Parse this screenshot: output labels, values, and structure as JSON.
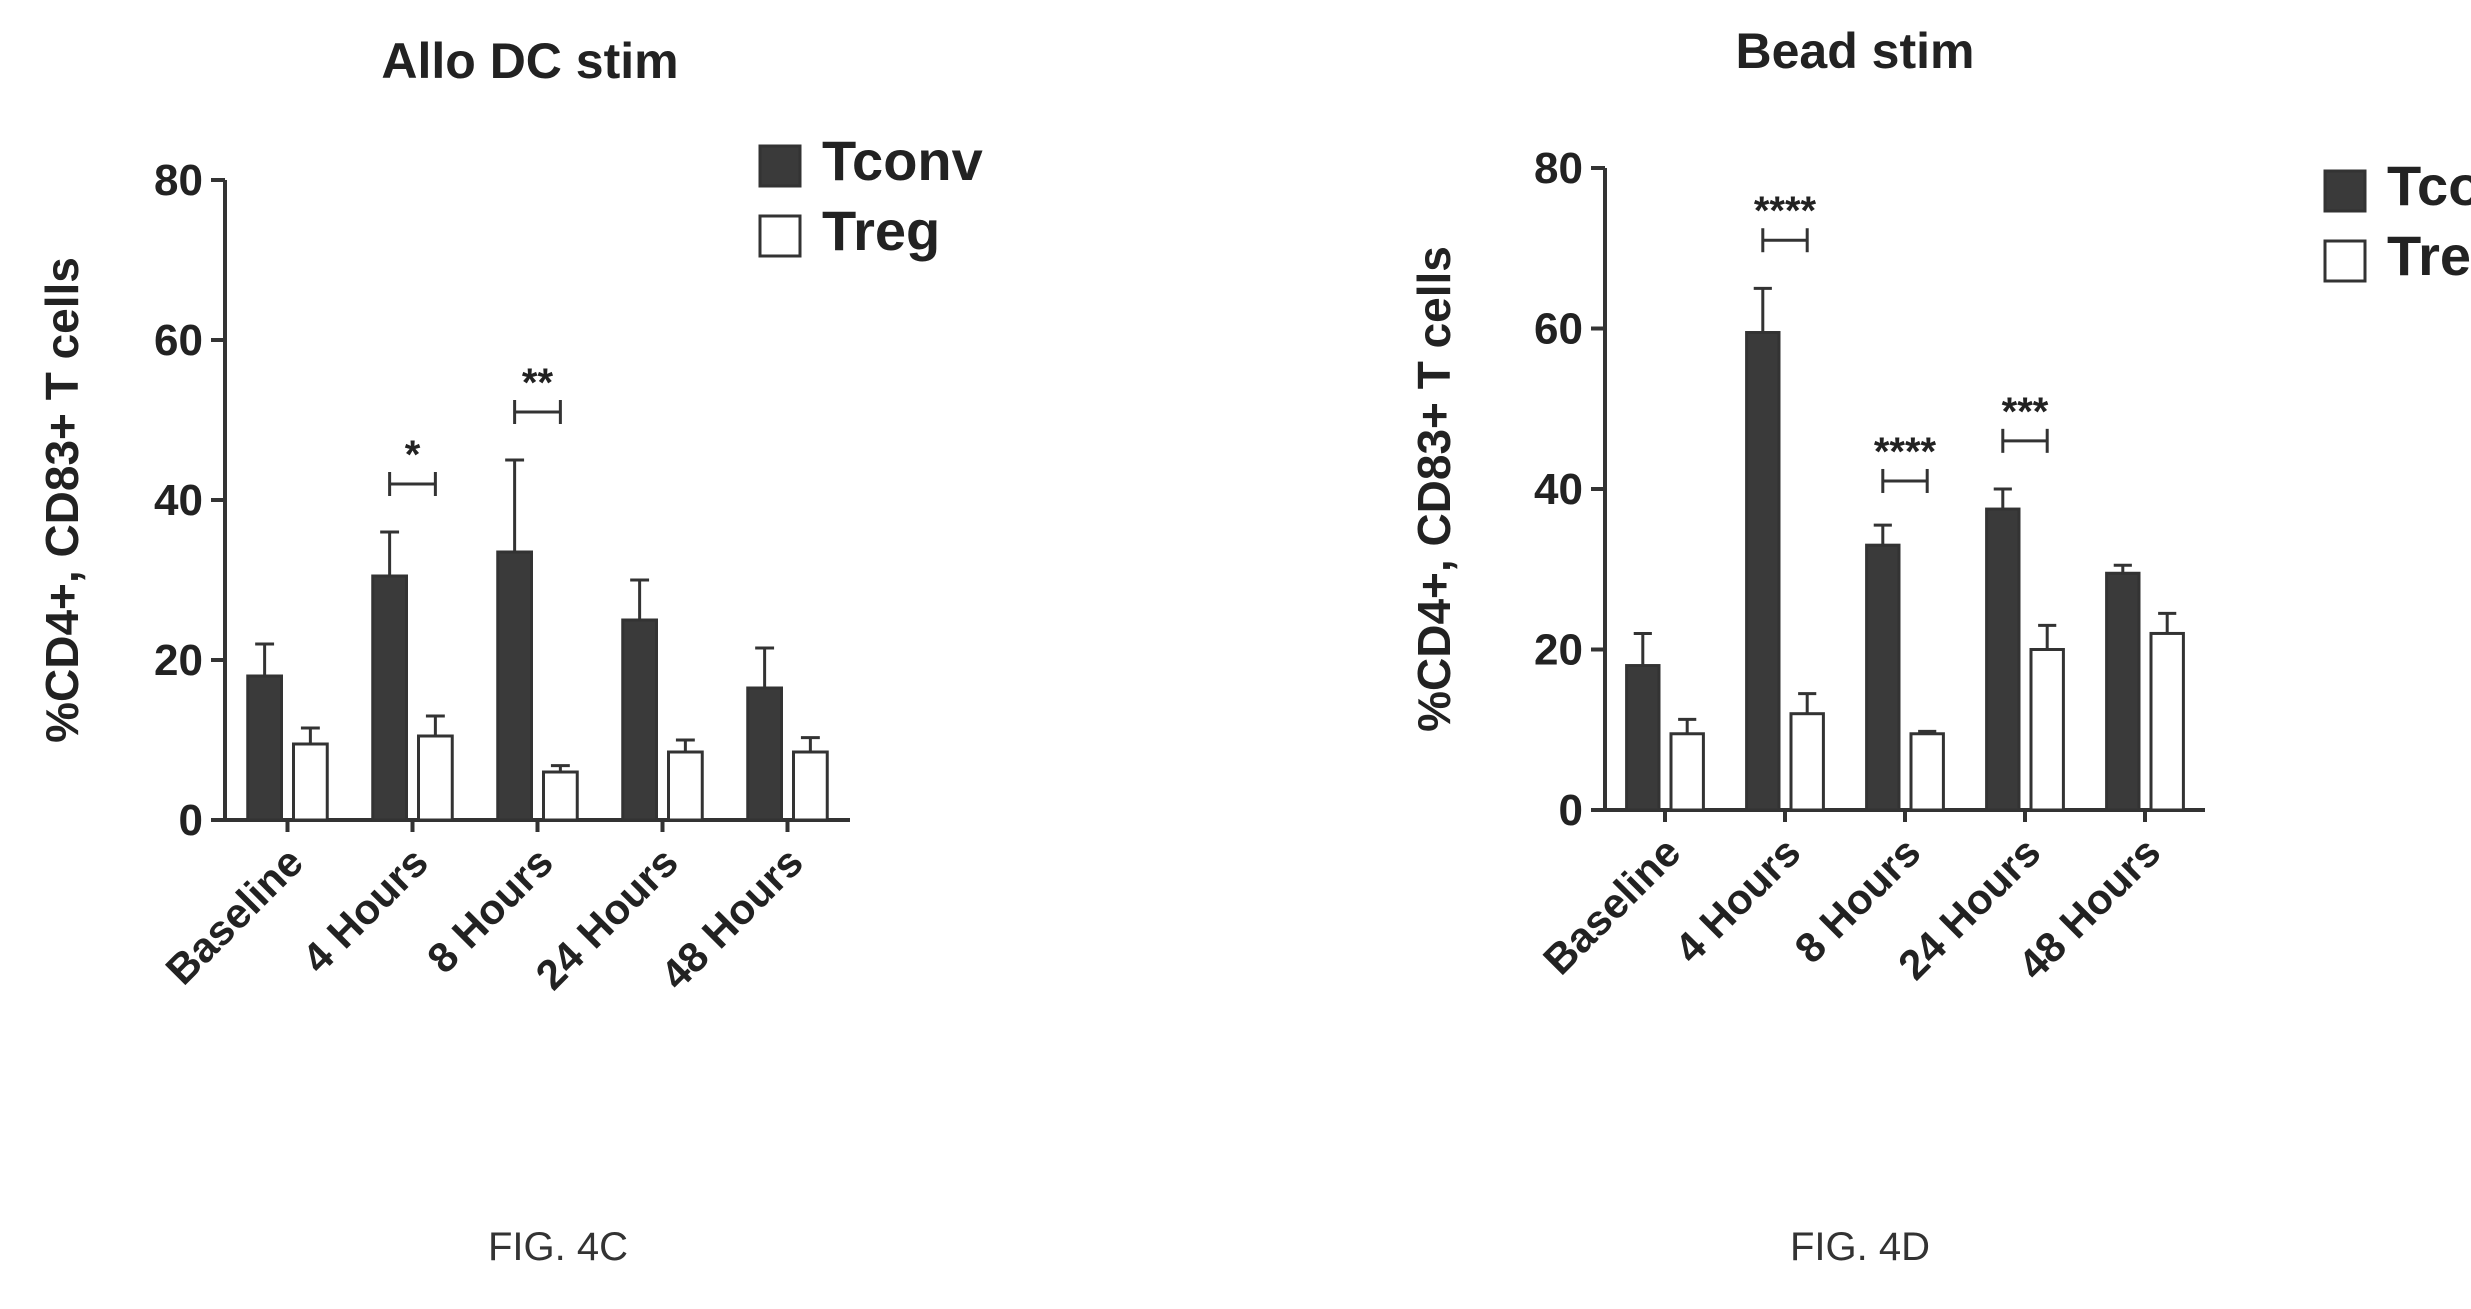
{
  "colors": {
    "tconv": "#3a3a3a",
    "treg": "#ffffff",
    "axis": "#333333",
    "text": "#222222"
  },
  "figures": [
    {
      "label": "FIG. 4C"
    },
    {
      "label": "FIG. 4D"
    }
  ],
  "chart_data": [
    {
      "type": "bar",
      "title": "Allo DC stim",
      "xlabel": "",
      "ylabel": "%CD4+, CD83+ T cells",
      "ylim": [
        0,
        80
      ],
      "yticks": [
        "0",
        "20",
        "40",
        "60",
        "80"
      ],
      "categories": [
        "Baseline",
        "4 Hours",
        "8 Hours",
        "24 Hours",
        "48 Hours"
      ],
      "series": [
        {
          "name": "Tconv",
          "values": [
            18,
            30.5,
            33.5,
            25,
            16.5
          ],
          "errors": [
            4,
            5.5,
            11.5,
            5,
            5
          ]
        },
        {
          "name": "Treg",
          "values": [
            9.5,
            10.5,
            6,
            8.5,
            8.5
          ],
          "errors": [
            2,
            2.5,
            0.8,
            1.5,
            1.8
          ]
        }
      ],
      "legend": "top-right",
      "significance": [
        {
          "category": "4 Hours",
          "label": "*",
          "y": 42
        },
        {
          "category": "8 Hours",
          "label": "**",
          "y": 51
        }
      ]
    },
    {
      "type": "bar",
      "title": "Bead stim",
      "xlabel": "",
      "ylabel": "%CD4+, CD83+ T cells",
      "ylim": [
        0,
        80
      ],
      "yticks": [
        "0",
        "20",
        "40",
        "60",
        "80"
      ],
      "categories": [
        "Baseline",
        "4 Hours",
        "8 Hours",
        "24 Hours",
        "48 Hours"
      ],
      "series": [
        {
          "name": "Tconv",
          "values": [
            18,
            59.5,
            33,
            37.5,
            29.5
          ],
          "errors": [
            4,
            5.5,
            2.5,
            2.5,
            1
          ]
        },
        {
          "name": "Treg",
          "values": [
            9.5,
            12,
            9.5,
            20,
            22
          ],
          "errors": [
            1.8,
            2.5,
            0.3,
            3,
            2.5
          ]
        }
      ],
      "legend": "top-right",
      "significance": [
        {
          "category": "4 Hours",
          "label": "****",
          "y": 71
        },
        {
          "category": "8 Hours",
          "label": "****",
          "y": 41
        },
        {
          "category": "24 Hours",
          "label": "***",
          "y": 46
        }
      ]
    }
  ]
}
